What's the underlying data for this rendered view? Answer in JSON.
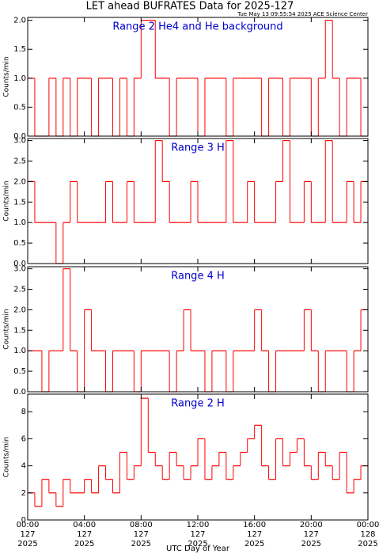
{
  "chart_data": [
    {
      "type": "step",
      "title": "LET ahead BUFRATES Data for 2025-127",
      "subtitle": "Tue May 13 09:55:54 2025 ACE Science Center",
      "annotation": "Range 2 He4 and He background",
      "ylabel": "Counts/min",
      "color": "#ff0000",
      "x": [
        0,
        0.5,
        1,
        1.5,
        2,
        2.5,
        3,
        3.5,
        4,
        4.5,
        5,
        5.5,
        6,
        6.5,
        7,
        7.5,
        8,
        8.5,
        9,
        9.5,
        10,
        10.5,
        11,
        11.5,
        12,
        12.5,
        13,
        13.5,
        14,
        14.5,
        15,
        15.5,
        16,
        16.5,
        17,
        17.5,
        18,
        18.5,
        19,
        19.5,
        20,
        20.5,
        21,
        21.5,
        22,
        22.5,
        23,
        23.5
      ],
      "values": [
        1,
        0,
        0,
        1,
        0,
        1,
        0,
        1,
        1,
        0,
        1,
        1,
        0,
        1,
        0,
        1,
        2,
        2,
        1,
        1,
        0,
        1,
        1,
        1,
        0,
        1,
        1,
        1,
        0,
        1,
        1,
        1,
        1,
        0,
        1,
        1,
        0,
        1,
        1,
        1,
        0,
        1,
        2,
        1,
        0,
        1,
        1,
        0
      ],
      "xlim": [
        0,
        24
      ],
      "xticks": [
        0,
        4,
        8,
        12,
        16,
        20,
        24
      ],
      "ylim": [
        0,
        2.05
      ],
      "yticks": [
        {
          "value": 0,
          "label": "0.0"
        },
        {
          "value": 0.5,
          "label": "0.5"
        },
        {
          "value": 1,
          "label": "1.0"
        },
        {
          "value": 1.5,
          "label": "1.5"
        },
        {
          "value": 2,
          "label": "2.0"
        }
      ]
    },
    {
      "type": "step",
      "annotation": "Range 3 H",
      "ylabel": "Counts/min",
      "color": "#ff0000",
      "x": [
        0,
        0.5,
        1,
        1.5,
        2,
        2.5,
        3,
        3.5,
        4,
        4.5,
        5,
        5.5,
        6,
        6.5,
        7,
        7.5,
        8,
        8.5,
        9,
        9.5,
        10,
        10.5,
        11,
        11.5,
        12,
        12.5,
        13,
        13.5,
        14,
        14.5,
        15,
        15.5,
        16,
        16.5,
        17,
        17.5,
        18,
        18.5,
        19,
        19.5,
        20,
        20.5,
        21,
        21.5,
        22,
        22.5,
        23,
        23.5
      ],
      "values": [
        2,
        1,
        1,
        1,
        0,
        1,
        2,
        1,
        1,
        1,
        1,
        2,
        1,
        1,
        2,
        1,
        1,
        1,
        3,
        2,
        1,
        1,
        1,
        2,
        1,
        1,
        1,
        1,
        3,
        1,
        1,
        2,
        1,
        1,
        1,
        2,
        3,
        1,
        1,
        2,
        1,
        1,
        3,
        1,
        1,
        2,
        1,
        2
      ],
      "xlim": [
        0,
        24
      ],
      "xticks": [
        0,
        4,
        8,
        12,
        16,
        20,
        24
      ],
      "ylim": [
        0,
        3.05
      ],
      "yticks": [
        {
          "value": 0,
          "label": "0.0"
        },
        {
          "value": 0.5,
          "label": "0.5"
        },
        {
          "value": 1,
          "label": "1.0"
        },
        {
          "value": 1.5,
          "label": "1.5"
        },
        {
          "value": 2,
          "label": "2.0"
        },
        {
          "value": 2.5,
          "label": "2.5"
        },
        {
          "value": 3,
          "label": "3.0"
        }
      ]
    },
    {
      "type": "step",
      "annotation": "Range 4 H",
      "ylabel": "Counts/min",
      "color": "#ff0000",
      "x": [
        0,
        0.5,
        1,
        1.5,
        2,
        2.5,
        3,
        3.5,
        4,
        4.5,
        5,
        5.5,
        6,
        6.5,
        7,
        7.5,
        8,
        8.5,
        9,
        9.5,
        10,
        10.5,
        11,
        11.5,
        12,
        12.5,
        13,
        13.5,
        14,
        14.5,
        15,
        15.5,
        16,
        16.5,
        17,
        17.5,
        18,
        18.5,
        19,
        19.5,
        20,
        20.5,
        21,
        21.5,
        22,
        22.5,
        23,
        23.5
      ],
      "values": [
        1,
        1,
        0,
        1,
        1,
        3,
        1,
        0,
        2,
        1,
        1,
        0,
        1,
        1,
        1,
        0,
        1,
        1,
        1,
        1,
        0,
        1,
        2,
        1,
        1,
        0,
        1,
        1,
        0,
        1,
        1,
        1,
        2,
        1,
        0,
        1,
        1,
        1,
        1,
        2,
        1,
        0,
        1,
        1,
        1,
        0,
        1,
        2
      ],
      "xlim": [
        0,
        24
      ],
      "xticks": [
        0,
        4,
        8,
        12,
        16,
        20,
        24
      ],
      "ylim": [
        0,
        3.05
      ],
      "yticks": [
        {
          "value": 0,
          "label": "0.0"
        },
        {
          "value": 0.5,
          "label": "0.5"
        },
        {
          "value": 1,
          "label": "1.0"
        },
        {
          "value": 1.5,
          "label": "1.5"
        },
        {
          "value": 2,
          "label": "2.0"
        },
        {
          "value": 2.5,
          "label": "2.5"
        },
        {
          "value": 3,
          "label": "3.0"
        }
      ]
    },
    {
      "type": "step",
      "annotation": "Range 2 H",
      "ylabel": "Counts/min",
      "xlabel": "UTC Day of Year",
      "color": "#ff0000",
      "x": [
        0,
        0.5,
        1,
        1.5,
        2,
        2.5,
        3,
        3.5,
        4,
        4.5,
        5,
        5.5,
        6,
        6.5,
        7,
        7.5,
        8,
        8.5,
        9,
        9.5,
        10,
        10.5,
        11,
        11.5,
        12,
        12.5,
        13,
        13.5,
        14,
        14.5,
        15,
        15.5,
        16,
        16.5,
        17,
        17.5,
        18,
        18.5,
        19,
        19.5,
        20,
        20.5,
        21,
        21.5,
        22,
        22.5,
        23,
        23.5
      ],
      "values": [
        2,
        1,
        3,
        2,
        1,
        3,
        2,
        2,
        3,
        2,
        4,
        3,
        2,
        5,
        3,
        4,
        9,
        5,
        4,
        3,
        5,
        4,
        3,
        4,
        6,
        3,
        4,
        5,
        3,
        4,
        5,
        6,
        7,
        4,
        3,
        6,
        4,
        5,
        6,
        4,
        3,
        5,
        4,
        3,
        5,
        2,
        3,
        4
      ],
      "xlim": [
        0,
        24
      ],
      "xticks": [
        {
          "value": 0,
          "label": "00:00"
        },
        {
          "value": 4,
          "label": "04:00"
        },
        {
          "value": 8,
          "label": "08:00"
        },
        {
          "value": 12,
          "label": "12:00"
        },
        {
          "value": 16,
          "label": "16:00"
        },
        {
          "value": 20,
          "label": "20:00"
        },
        {
          "value": 24,
          "label": "00:00"
        }
      ],
      "xtick_days": [
        "127",
        "127",
        "127",
        "127",
        "127",
        "127",
        "128"
      ],
      "xtick_years": [
        "2025",
        "2025",
        "2025",
        "2025",
        "2025",
        "2025",
        "2025"
      ],
      "ylim": [
        0,
        9.3
      ],
      "yticks": [
        0,
        2,
        4,
        6,
        8
      ]
    }
  ]
}
